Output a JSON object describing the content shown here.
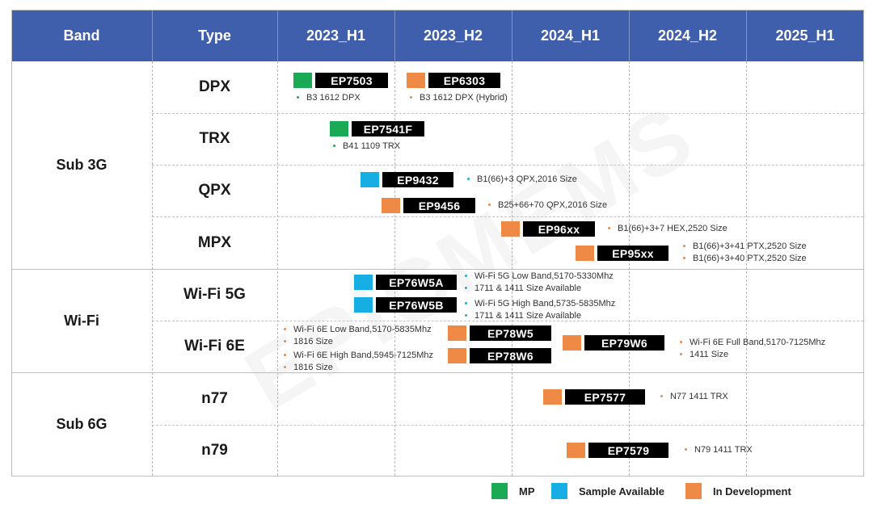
{
  "watermark": "EPICMEMS",
  "header": {
    "band": "Band",
    "type": "Type",
    "periods": [
      "2023_H1",
      "2023_H2",
      "2024_H1",
      "2024_H2",
      "2025_H1"
    ]
  },
  "bands": [
    {
      "label": "Sub 3G",
      "types": [
        "DPX",
        "TRX",
        "QPX",
        "MPX"
      ]
    },
    {
      "label": "Wi-Fi",
      "types": [
        "Wi-Fi 5G",
        "Wi-Fi 6E"
      ]
    },
    {
      "label": "Sub 6G",
      "types": [
        "n77",
        "n79"
      ]
    }
  ],
  "colors": {
    "mp": "#1aaa55",
    "sample": "#17aee3",
    "dev": "#ee8a45",
    "header": "#3f5eab"
  },
  "products": [
    {
      "name": "EP7503",
      "status": "mp",
      "notes": [
        "B3 1612 DPX"
      ]
    },
    {
      "name": "EP6303",
      "status": "dev",
      "notes": [
        "B3 1612 DPX (Hybrid)"
      ]
    },
    {
      "name": "EP7541F",
      "status": "mp",
      "notes": [
        "B41 1109 TRX"
      ]
    },
    {
      "name": "EP9432",
      "status": "sample",
      "notes": [
        "B1(66)+3 QPX,2016 Size"
      ]
    },
    {
      "name": "EP9456",
      "status": "dev",
      "notes": [
        "B25+66+70 QPX,2016 Size"
      ]
    },
    {
      "name": "EP96xx",
      "status": "dev",
      "notes": [
        "B1(66)+3+7 HEX,2520 Size"
      ]
    },
    {
      "name": "EP95xx",
      "status": "dev",
      "notes": [
        "B1(66)+3+41 PTX,2520 Size",
        "B1(66)+3+40 PTX,2520 Size"
      ]
    },
    {
      "name": "EP76W5A",
      "status": "sample",
      "notes": [
        "Wi-Fi 5G Low Band,5170-5330Mhz",
        "1711 & 1411 Size Available"
      ]
    },
    {
      "name": "EP76W5B",
      "status": "sample",
      "notes": [
        "Wi-Fi 5G High Band,5735-5835Mhz",
        "1711 & 1411 Size Available"
      ]
    },
    {
      "name": "EP78W5",
      "status": "dev",
      "notes": [
        "Wi-Fi 6E Low Band,5170-5835Mhz",
        "1816 Size"
      ]
    },
    {
      "name": "EP78W6",
      "status": "dev",
      "notes": [
        "Wi-Fi 6E High Band,5945-7125Mhz",
        "1816 Size"
      ]
    },
    {
      "name": "EP79W6",
      "status": "dev",
      "notes": [
        "Wi-Fi 6E Full Band,5170-7125Mhz",
        "1411 Size"
      ]
    },
    {
      "name": "EP7577",
      "status": "dev",
      "notes": [
        "N77 1411 TRX"
      ]
    },
    {
      "name": "EP7579",
      "status": "dev",
      "notes": [
        "N79 1411 TRX"
      ]
    }
  ],
  "legend": [
    {
      "status": "mp",
      "label": "MP"
    },
    {
      "status": "sample",
      "label": "Sample Available"
    },
    {
      "status": "dev",
      "label": "In Development"
    }
  ]
}
